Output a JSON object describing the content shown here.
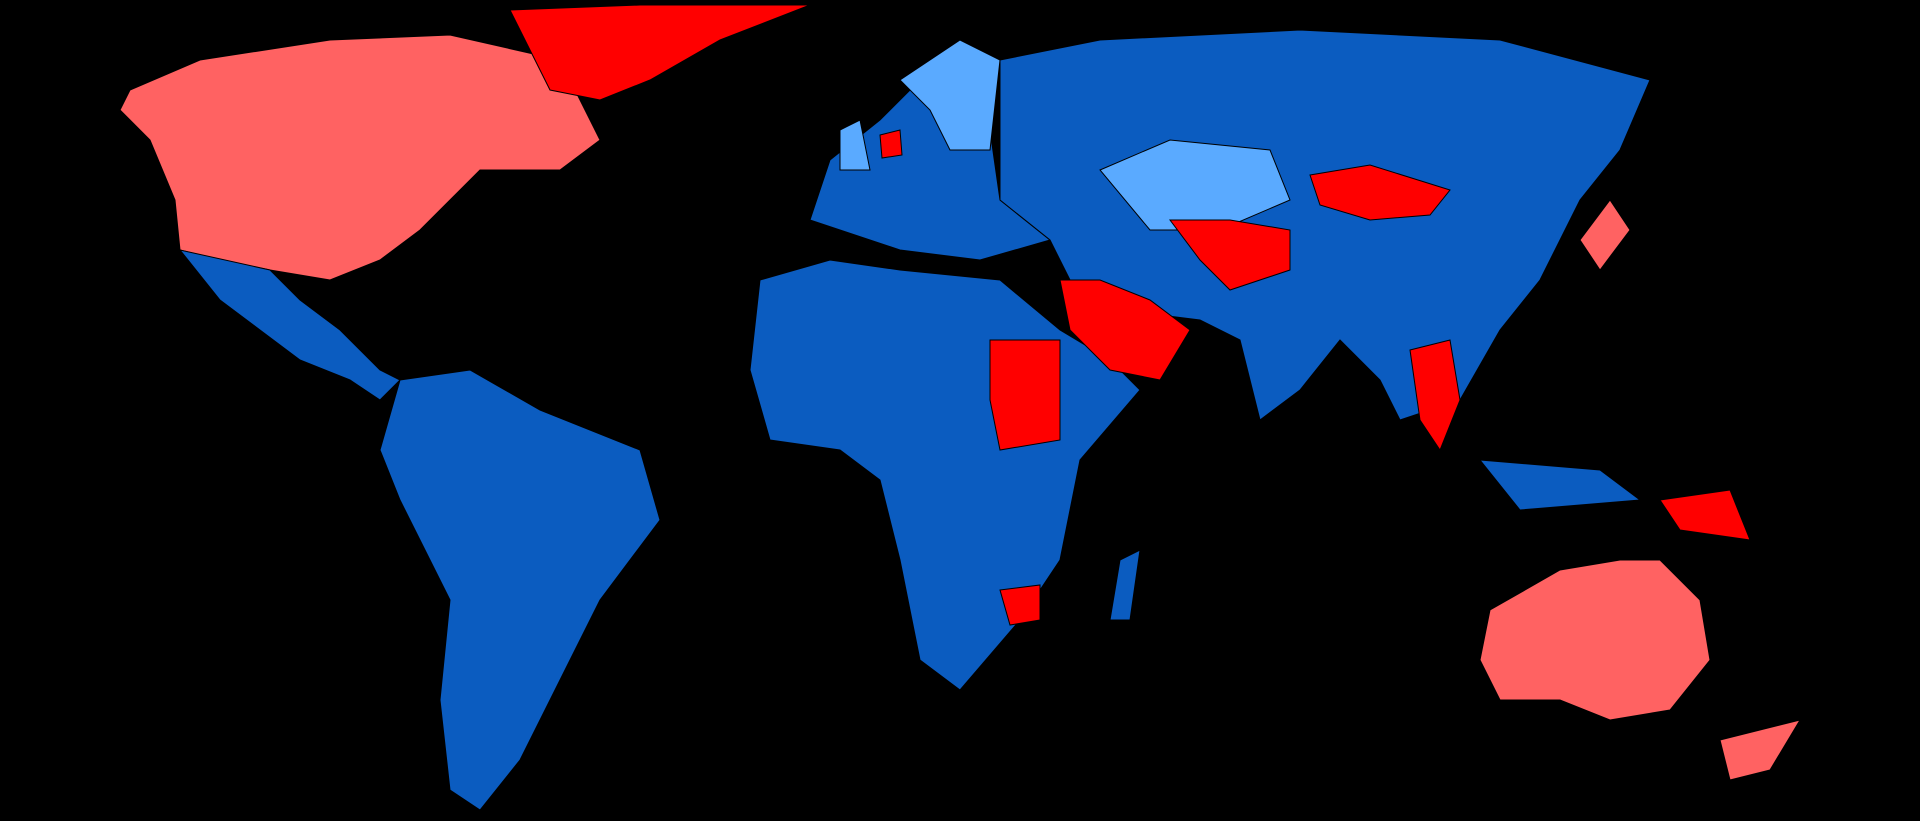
{
  "map": {
    "background": "#000000",
    "colors": {
      "blue": "#0b5cc0",
      "light_blue": "#5aaaff",
      "salmon": "#ff6262",
      "red": "#ff0000"
    }
  }
}
